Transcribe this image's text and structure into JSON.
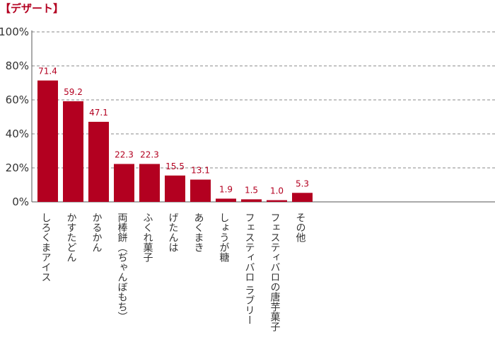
{
  "colors": {
    "accent": "#B30020",
    "axis": "#555555",
    "grid": "#888888",
    "text": "#333333"
  },
  "chart_data": {
    "type": "bar",
    "title": "【デザート】",
    "xlabel": "",
    "ylabel": "",
    "ylim": [
      0,
      100
    ],
    "y_ticks": [
      0,
      20,
      40,
      60,
      80,
      100
    ],
    "y_tick_labels": [
      "0%",
      "20%",
      "40%",
      "60%",
      "80%",
      "100%"
    ],
    "grid": true,
    "categories": [
      "しろくまアイス",
      "かすたどん",
      "かるかん",
      "両棒餅（ぢゃんぼもち）",
      "ふくれ菓子",
      "げたんは",
      "あくまき",
      "しょうが糖",
      "フェスティバロ ラブリー",
      "フェスティバロの唐芋菓子",
      "その他"
    ],
    "values": [
      71.4,
      59.2,
      47.1,
      22.3,
      22.3,
      15.5,
      13.1,
      1.9,
      1.5,
      1.0,
      5.3
    ],
    "value_labels": [
      "71.4",
      "59.2",
      "47.1",
      "22.3",
      "22.3",
      "15.5",
      "13.1",
      "1.9",
      "1.5",
      "1.0",
      "5.3"
    ]
  }
}
